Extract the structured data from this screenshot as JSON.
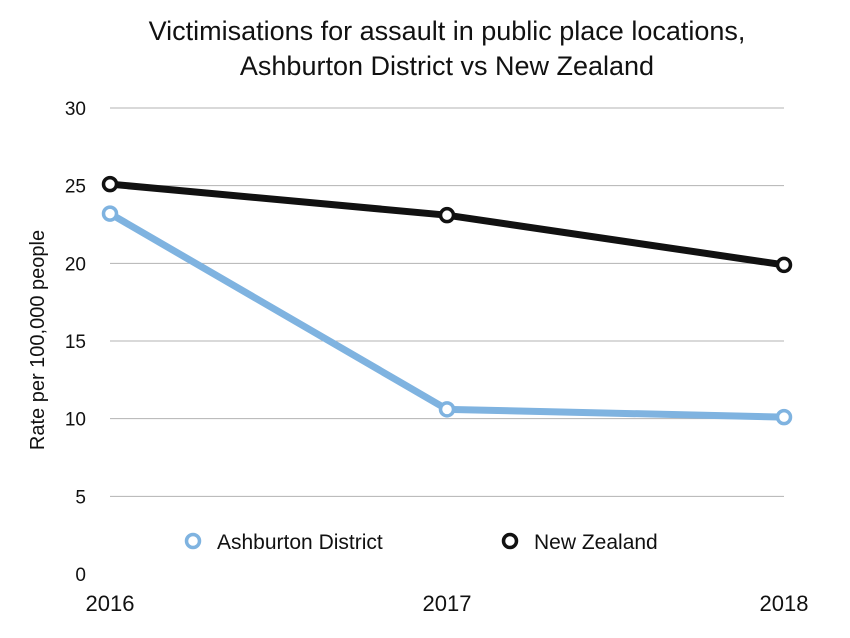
{
  "chart_data": {
    "type": "line",
    "title": "Victimisations for assault in public place locations,",
    "subtitle": "Ashburton District vs New Zealand",
    "ylabel": "Rate per 100,000 people",
    "xlabel": "",
    "categories": [
      "2016",
      "2017",
      "2018"
    ],
    "ylim": [
      0,
      30
    ],
    "yticks": [
      "0",
      "5",
      "10",
      "15",
      "20",
      "25",
      "30"
    ],
    "grid": true,
    "legend_position": "bottom-inside",
    "series": [
      {
        "name": "Ashburton District",
        "color": "#7fb3e0",
        "values": [
          23.2,
          10.6,
          10.1
        ]
      },
      {
        "name": "New Zealand",
        "color": "#111111",
        "values": [
          25.1,
          23.1,
          19.9
        ]
      }
    ]
  }
}
